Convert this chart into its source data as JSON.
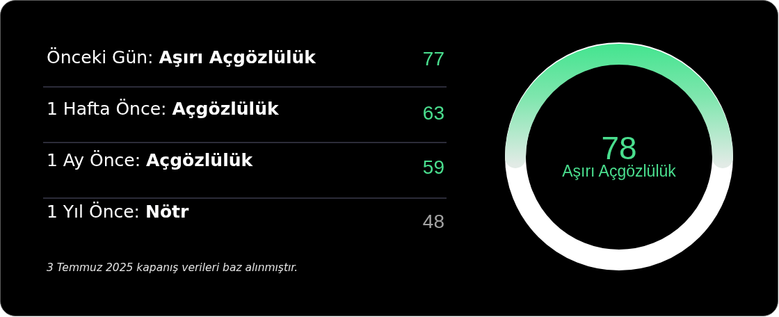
{
  "chart_data": [
    {
      "type": "other",
      "categories": [
        "Önceki Gün: Aşırı Açgözlülük",
        "1 Hafta Önce: Açgözlülük",
        "1 Ay Önce: Açgözlülük",
        "1 Yıl Önce: Nötr"
      ],
      "values": [
        77,
        63,
        59,
        48
      ],
      "colors": [
        "#4ade8e",
        "#4ade8e",
        "#4ade8e",
        "#a3a3a3"
      ],
      "data_labels": true,
      "annotations": [
        "3 Temmuz 2025 kapanış verileri baz alınmıştır."
      ]
    },
    {
      "type": "other",
      "categories": [
        "Aşırı Açgözlülük"
      ],
      "values": [
        78
      ],
      "colors": [
        "#4ade8e"
      ],
      "data_labels": true
    }
  ]
}
